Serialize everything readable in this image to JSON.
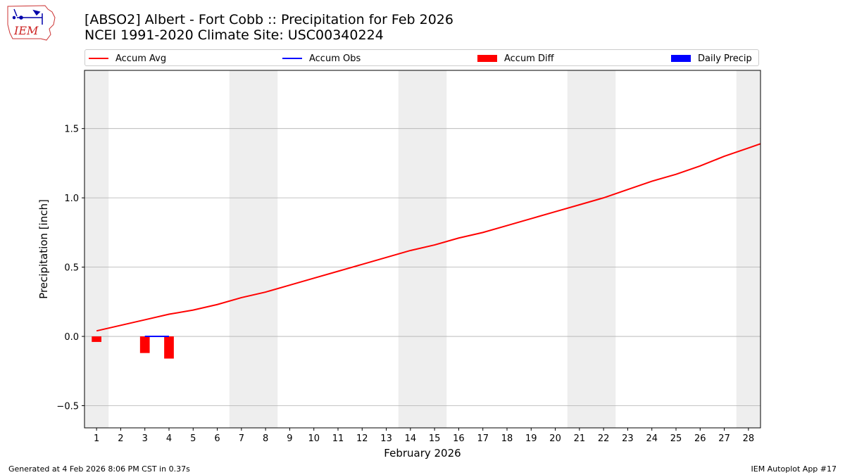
{
  "header": {
    "logo_text": "IEM",
    "title_line1": "[ABSO2] Albert - Fort Cobb :: Precipitation for Feb 2026",
    "title_line2": "NCEI 1991-2020 Climate Site: USC00340224"
  },
  "legend": {
    "items": [
      {
        "label": "Accum Avg",
        "kind": "line",
        "color": "#ff0000"
      },
      {
        "label": "Accum Obs",
        "kind": "line",
        "color": "#0000ff"
      },
      {
        "label": "Accum Diff",
        "kind": "patch",
        "color": "#ff0000"
      },
      {
        "label": "Daily Precip",
        "kind": "patch",
        "color": "#0000ff"
      }
    ]
  },
  "footer": {
    "generated": "Generated at 4 Feb 2026 8:06 PM CST in 0.37s",
    "app": "IEM Autoplot App #17"
  },
  "chart_data": {
    "type": "line",
    "xlabel": "February 2026",
    "ylabel": "Precipitation [inch]",
    "xlim": [
      0.5,
      28.5
    ],
    "ylim": [
      -0.66,
      1.92
    ],
    "yticks": [
      -0.5,
      0.0,
      0.5,
      1.0,
      1.5
    ],
    "ytick_labels": [
      "−0.5",
      "0.0",
      "0.5",
      "1.0",
      "1.5"
    ],
    "x": [
      1,
      2,
      3,
      4,
      5,
      6,
      7,
      8,
      9,
      10,
      11,
      12,
      13,
      14,
      15,
      16,
      17,
      18,
      19,
      20,
      21,
      22,
      23,
      24,
      25,
      26,
      27,
      28
    ],
    "weekend_shading": [
      [
        0.5,
        1.5
      ],
      [
        6.5,
        8.5
      ],
      [
        13.5,
        15.5
      ],
      [
        20.5,
        22.5
      ],
      [
        27.5,
        28.5
      ]
    ],
    "grid": "y",
    "series": [
      {
        "name": "Accum Avg",
        "type": "line",
        "color": "#ff0000",
        "x": [
          1,
          2,
          3,
          4,
          5,
          6,
          7,
          8,
          9,
          10,
          11,
          12,
          13,
          14,
          15,
          16,
          17,
          18,
          19,
          20,
          21,
          22,
          23,
          24,
          25,
          26,
          27,
          28,
          28.5
        ],
        "values": [
          0.04,
          0.08,
          0.12,
          0.16,
          0.19,
          0.23,
          0.28,
          0.32,
          0.37,
          0.42,
          0.47,
          0.52,
          0.57,
          0.62,
          0.66,
          0.71,
          0.75,
          0.8,
          0.85,
          0.9,
          0.95,
          1.0,
          1.06,
          1.12,
          1.17,
          1.23,
          1.3,
          1.36,
          1.39
        ]
      },
      {
        "name": "Accum Obs",
        "type": "line",
        "color": "#0000ff",
        "x": [
          3,
          4
        ],
        "values": [
          0.0,
          0.0
        ]
      },
      {
        "name": "Accum Diff",
        "type": "bar",
        "color": "#ff0000",
        "x": [
          1,
          3,
          4
        ],
        "values": [
          -0.04,
          -0.12,
          -0.16
        ]
      },
      {
        "name": "Daily Precip",
        "type": "bar",
        "color": "#0000ff",
        "x": [],
        "values": []
      }
    ]
  }
}
